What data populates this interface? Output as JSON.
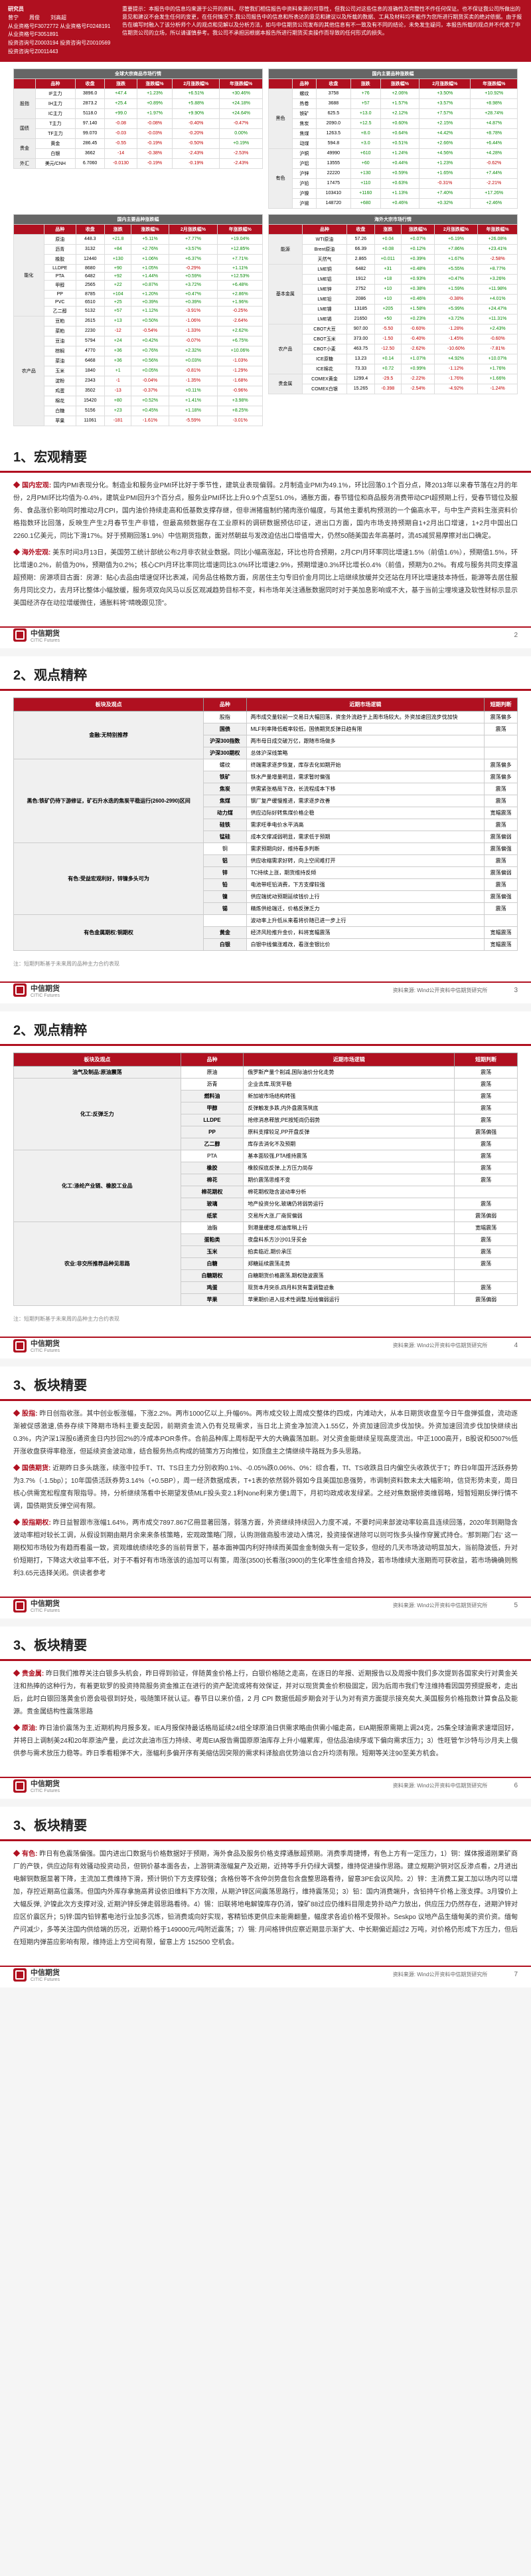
{
  "colors": {
    "brand": "#b01020",
    "up": "#0a8a0a",
    "dn": "#c00000"
  },
  "header": {
    "researcher": "研究员",
    "r1_name": "曾宁",
    "r1_cert": "从业资格号F3072772",
    "r1_inv": "投资咨询号Z0003194",
    "r2_name": "周俊",
    "r2_cert": "从业资格号F0248191",
    "r2_inv": "投资咨询号Z0010569",
    "r3_name": "刘高超",
    "r3_cert": "从业资格号F3051891",
    "r3_inv": "投资咨询号Z0011443",
    "disclaimer": "重要提示：本报告中的信息均来源于公开的资料。尽管我们相信报告中资料来源的可靠性，但我公司对这些信息的准确性及完整性不作任何保证。也不保证我公司所做出的意见和建议不会发生任何的变更，在任何情况下,我公司报告中的信息和所表达的意见和建议以及所载的数据、工具及材料均不能作为您所进行期货买卖的绝对依据。由于报告在编写时融入了该分析师个人的观点和见解以及分析方法，如与中信期货公司发布的其他信息有不一致及有不同的结论，未免发生疑问，本报告所载的观点并不代表了中信期货公司的立场，所以请谨慎参考。我公司不承担因根据本报告所进行期货买卖操作而导致的任何形式的损失。"
  },
  "qt": {
    "block1_title": "全球大宗商品市场行情",
    "cols": [
      "品种",
      "收盘",
      "涨跌",
      "涨跌幅%",
      "2月涨跌幅%",
      "年涨跌幅%"
    ],
    "groups1": [
      {
        "cat": "股指",
        "rows": [
          [
            "IF主力",
            "3896.0",
            "+47.4",
            1.23,
            6.51,
            30.46
          ],
          [
            "IH主力",
            "2873.2",
            "+25.4",
            0.89,
            5.88,
            24.18
          ],
          [
            "IC主力",
            "5118.0",
            "+99.0",
            1.97,
            9.9,
            24.64
          ]
        ]
      },
      {
        "cat": "国债",
        "rows": [
          [
            "T主力",
            "97.140",
            "-0.08",
            -0.08,
            -0.4,
            -0.47
          ],
          [
            "TF主力",
            "99.070",
            "-0.03",
            -0.03,
            -0.2,
            0.0
          ]
        ]
      },
      {
        "cat": "贵金",
        "rows": [
          [
            "黄金",
            "286.45",
            "-0.55",
            -0.19,
            -0.5,
            0.19
          ],
          [
            "白银",
            "3662",
            "-14",
            -0.38,
            -2.43,
            -2.53
          ]
        ]
      },
      {
        "cat": "外汇",
        "rows": [
          [
            "美元/CNH",
            "6.7060",
            "-0.0130",
            -0.19,
            -0.19,
            -2.43
          ]
        ]
      }
    ],
    "block1b_title": "国内主要品种涨跌幅",
    "groups1b": [
      {
        "cat": "黑色",
        "rows": [
          [
            "螺纹",
            "3758",
            "+76",
            2.06,
            3.5,
            10.92
          ],
          [
            "热卷",
            "3688",
            "+57",
            1.57,
            3.57,
            8.98
          ],
          [
            "铁矿",
            "625.5",
            "+13.0",
            2.12,
            7.57,
            28.74
          ],
          [
            "焦炭",
            "2090.0",
            "+12.5",
            0.6,
            2.15,
            4.87
          ],
          [
            "焦煤",
            "1263.5",
            "+8.0",
            0.64,
            4.42,
            8.78
          ],
          [
            "动煤",
            "594.8",
            "+3.0",
            0.51,
            2.66,
            6.44
          ]
        ]
      },
      {
        "cat": "有色",
        "rows": [
          [
            "沪铜",
            "49990",
            "+610",
            1.24,
            4.56,
            4.28
          ],
          [
            "沪铝",
            "13555",
            "+60",
            0.44,
            1.23,
            -0.62
          ],
          [
            "沪锌",
            "22220",
            "+130",
            0.59,
            1.65,
            7.44
          ],
          [
            "沪铅",
            "17475",
            "+110",
            0.63,
            -0.31,
            -2.21
          ],
          [
            "沪镍",
            "103410",
            "+1160",
            1.13,
            7.4,
            17.26
          ],
          [
            "沪锡",
            "148720",
            "+680",
            0.46,
            0.32,
            2.46
          ]
        ]
      }
    ],
    "block2_title": "国内主要品种涨跌幅",
    "groups2": [
      {
        "cat": "能化",
        "rows": [
          [
            "原油",
            "448.3",
            "+21.8",
            5.11,
            7.77,
            19.04
          ],
          [
            "沥青",
            "3132",
            "+84",
            2.76,
            3.57,
            12.85
          ],
          [
            "橡胶",
            "12440",
            "+130",
            1.06,
            6.37,
            7.71
          ],
          [
            "LLDPE",
            "8680",
            "+90",
            1.05,
            -0.29,
            1.11
          ],
          [
            "PTA",
            "6482",
            "+92",
            1.44,
            0.59,
            12.53
          ],
          [
            "甲醇",
            "2565",
            "+22",
            0.87,
            3.72,
            6.48
          ],
          [
            "PP",
            "8785",
            "+104",
            1.2,
            0.47,
            2.86
          ],
          [
            "PVC",
            "6510",
            "+25",
            0.39,
            0.39,
            1.96
          ],
          [
            "乙二醇",
            "5132",
            "+57",
            1.12,
            -3.91,
            -0.25
          ]
        ]
      },
      {
        "cat": "农产品",
        "rows": [
          [
            "豆粕",
            "2615",
            "+13",
            0.5,
            -1.06,
            -2.64
          ],
          [
            "菜粕",
            "2230",
            "-12",
            -0.54,
            -1.33,
            2.62
          ],
          [
            "豆油",
            "5794",
            "+24",
            0.42,
            -0.07,
            6.75
          ],
          [
            "棕榈",
            "4770",
            "+36",
            0.76,
            2.32,
            10.06
          ],
          [
            "菜油",
            "6468",
            "+36",
            0.56,
            0.03,
            -1.03
          ],
          [
            "玉米",
            "1840",
            "+1",
            0.05,
            -0.81,
            -1.29
          ],
          [
            "淀粉",
            "2343",
            "-1",
            -0.04,
            -1.35,
            -1.68
          ],
          [
            "鸡蛋",
            "3502",
            "-13",
            -0.37,
            0.11,
            -0.96
          ],
          [
            "棉花",
            "15420",
            "+80",
            0.52,
            1.41,
            3.98
          ],
          [
            "白糖",
            "5156",
            "+23",
            0.45,
            1.18,
            8.25
          ],
          [
            "苹果",
            "11061",
            "-181",
            -1.61,
            -5.59,
            -3.01
          ]
        ]
      }
    ],
    "block3_title": "海外大宗市场行情",
    "groups3": [
      {
        "cat": "能源",
        "rows": [
          [
            "WTI原油",
            "57.26",
            "+0.04",
            0.07,
            6.19,
            26.08
          ],
          [
            "Brent原油",
            "66.39",
            "+0.08",
            0.12,
            7.86,
            23.41
          ],
          [
            "天然气",
            "2.865",
            "+0.011",
            0.39,
            1.67,
            -2.58
          ]
        ]
      },
      {
        "cat": "基本金属",
        "rows": [
          [
            "LME铜",
            "6482",
            "+31",
            0.48,
            5.55,
            8.77
          ],
          [
            "LME铝",
            "1912",
            "+18",
            0.93,
            0.47,
            3.26
          ],
          [
            "LME锌",
            "2752",
            "+10",
            0.38,
            1.59,
            11.98
          ],
          [
            "LME铅",
            "2086",
            "+10",
            0.46,
            -0.38,
            4.01
          ],
          [
            "LME镍",
            "13185",
            "+205",
            1.58,
            5.99,
            24.47
          ],
          [
            "LME锡",
            "21650",
            "+50",
            0.23,
            3.72,
            11.31
          ]
        ]
      },
      {
        "cat": "农产品",
        "rows": [
          [
            "CBOT大豆",
            "907.00",
            "-5.50",
            -0.6,
            -1.28,
            2.43
          ],
          [
            "CBOT玉米",
            "373.00",
            "-1.50",
            -0.4,
            -1.45,
            -0.6
          ],
          [
            "CBOT小麦",
            "463.75",
            "-12.50",
            -2.62,
            -10.6,
            -7.81
          ],
          [
            "ICE原糖",
            "13.23",
            "+0.14",
            1.07,
            4.92,
            10.07
          ],
          [
            "ICE棉花",
            "73.33",
            "+0.72",
            0.99,
            -1.12,
            1.76
          ]
        ]
      },
      {
        "cat": "贵金属",
        "rows": [
          [
            "COMEX黄金",
            "1299.4",
            "-29.5",
            -2.22,
            -1.76,
            1.66
          ],
          [
            "COMEX白银",
            "15.265",
            "-0.398",
            -2.54,
            -4.92,
            -1.24
          ]
        ]
      }
    ]
  },
  "p1": {
    "title": "1、宏观精要",
    "dom_label": "国内宏观:",
    "dom_text": "国内PMI表现分化。制造业和服务业PMI环比好于季节性，建筑业表现偏弱。2月制造业PMI为49.1%，环比回落0.1个百分点，降2013年以来春节落在2月的年份，2月PMI环比均值为-0.4%，建筑业PMI回升3个百分点，服务业PMI环比上升0.9个点至51.0%，通胀方面，春节错位和商品服务消费带动CPI超预期上行，受春节错位及服务、食品涨价影响同时推动2月CPI，国内油价持续走高和低基数支撑存继，但非洲猪瘟制约猪肉涨价幅度，与其他主要机构预测的一个偏高水平，与中生产资料生涨资料价格指数环比回落，反映生产生2月春节生产非错，但最高频数据存在工业原料的调研数据预估印证，进出口方面，国内市场支持预期自1+2月出口增速，1+2月中国出口2260.1亿美元，同比下滑17%。好于预期回落1.9%）中信期货指数，面对然朝兹与发改迫估出口增值增大，仍然50随美国去年高基时，流45减贸易摩擦对出口确定。",
    "intl_label": "海外宏观:",
    "intl_text": "美东时间3月13日，美国劳工统计部统公布2月非农就业数据。同比小幅高涨起，环比也符合预期，2月CPI月环率同比增速1.5%（前值1.6%），预期值1.5%，环比增速0.2%，前值为0%，预期值为0.2%；核心CPI月环比率同比增速同比3.0%环比增速2.9%，预期增速0.3%环比增长0.4%（前值，预期为0.2%。有成与服务共同支撑温超预期：房源项目古面：房源：贴心去品由增速促环比表减，闰务品住格数方面，房居住主匀专旧价金月同比上培继续放缓并交还站在月环比增速技本持低，能源等去居住服务月同比交力，去月环比整体小幅放缓，服务项双向风马以反区观减趋势目标不变，料市场年关注通胀数据同时对于美加息影响或不大，基于当前尘埋埃速及软性财标示显示美国经济存在动拉增缓微住，通胀料将\"晴晚跟见顶\"。"
  },
  "p2": {
    "title": "2、观点精粹",
    "cols": [
      "板块及观点",
      "品种",
      "近期市场逻辑",
      "短期判断"
    ],
    "rows": [
      [
        "金融:无特别推荐",
        "股指",
        "两市成交量较前一交易日大幅回落，资金外流趋于上周市场较大。外资加速回流步伐加快",
        "震荡偏多"
      ],
      [
        "",
        "国债",
        "MLF利率降低概率较低，国债期货反弹日趋有限",
        "震荡"
      ],
      [
        "",
        "沪深300指数",
        "两市母日成交破万亿，跟随市场做多",
        ""
      ],
      [
        "",
        "沪深300期权",
        "总体沪深线策略",
        ""
      ],
      [
        "黑色:铁矿仍待下游修证，矿石升水迭的焦炭平稳运行(2600-2990)区间",
        "螺纹",
        "终端需求逐步恢复，库存去化如期开始",
        "震荡偏多"
      ],
      [
        "",
        "铁矿",
        "铁水产量增量明显，需求暂时偏强",
        "震荡偏多"
      ],
      [
        "",
        "焦炭",
        "供需紧张格局下改，长流程成本下移",
        "震荡"
      ],
      [
        "",
        "焦煤",
        "钢厂复产缓慢推进，需求逐步改善",
        "震荡"
      ],
      [
        "",
        "动力煤",
        "供应边际好转焦煤价格企稳",
        "宽幅震荡"
      ],
      [
        "",
        "硅铁",
        "需求旺季电价水平消高",
        "震荡"
      ],
      [
        "",
        "锰硅",
        "成本文撑减弱明显，需求低于预期",
        "震荡偏弱"
      ],
      [
        "有色:受益宏观利好，锌镍多头可为",
        "铜",
        "需求预期向好，维持看多判断",
        "震荡偏强"
      ],
      [
        "",
        "铝",
        "供应收缩需求好转，向上空间难打开",
        "震荡"
      ],
      [
        "",
        "锌",
        "TC持续上涨，期货维持反倾",
        "震荡偏弱"
      ],
      [
        "",
        "铅",
        "电池带旺铅消费，下方支撑较强",
        "震荡"
      ],
      [
        "",
        "镍",
        "供应端扰动预期延续钱价上行",
        "震荡偏强"
      ],
      [
        "",
        "锡",
        "精炼供给端迁，价格反弹乏力",
        "震荡"
      ],
      [
        "有色金属期权:铜期权",
        "",
        "波动率上升低从来看将价随已进一步上行",
        ""
      ],
      [
        "",
        "黄金",
        "经济风险推升金价，料将宽幅震荡",
        "宽幅震荡"
      ],
      [
        "",
        "白银",
        "白银中线偏涨难改，看涨金银比价",
        "宽幅震荡"
      ]
    ],
    "note": "注：短期判断基于未来周的品种主力合约表现"
  },
  "p3": {
    "title": "2、观点精粹",
    "cols": [
      "板块及观点",
      "品种",
      "近期市场逻辑",
      "短期判断"
    ],
    "rows": [
      [
        "油气及制品:原油震荡",
        "原油",
        "俄罗斯产量个削减,国际油价分化走势",
        "震荡"
      ],
      [
        "化工:反弹乏力",
        "沥青",
        "企业去库,现货平稳",
        "震荡"
      ],
      [
        "",
        "燃料油",
        "新加坡市场结构转强",
        "震荡"
      ],
      [
        "",
        "甲醇",
        "反弹触发多跌,内外盘震荡筑底",
        "震荡"
      ],
      [
        "",
        "LLDPE",
        "抢修消息释放;PE按矩尚仍弱势",
        "震荡"
      ],
      [
        "",
        "PP",
        "原料支撑较足,PP开盘反弹",
        "震荡偏强"
      ],
      [
        "",
        "乙二醇",
        "库存去消化不及预期",
        "震荡"
      ],
      [
        "化工:涤纶产业链、橡胶工业品",
        "PTA",
        "基本面较强,PTA维持震荡",
        "震荡"
      ],
      [
        "",
        "橡胶",
        "橡胶探底反弹,上方压力尚存",
        "震荡"
      ],
      [
        "",
        "棉花",
        "期价震荡思维不变",
        "震荡"
      ],
      [
        "",
        "棉花期权",
        "棉花期权隐含波动率分析",
        ""
      ],
      [
        "",
        "玻璃",
        "地产投资分化,玻璃仍将弱势运行",
        "震荡"
      ],
      [
        "",
        "纸浆",
        "交易所大涨,厂商贸偏弱",
        "震荡偏弱"
      ],
      [
        "农业:非交所推荐品种见思路",
        "油脂",
        "到港量缓增,棕油库稍上行",
        "宽幅震荡"
      ],
      [
        "",
        "蛋粕类",
        "夜盘料系方沙沙01牙买会",
        "震荡"
      ],
      [
        "",
        "玉米",
        "拍卖临近,期价承压",
        "震荡"
      ],
      [
        "",
        "白糖",
        "郑糖延续震荡走势",
        "震荡"
      ],
      [
        "",
        "白糖期权",
        "白糖期货价格震荡,期权隐波震荡",
        ""
      ],
      [
        "",
        "鸡蛋",
        "现货本月突杀,四月料货有重调整迹象",
        "震荡"
      ],
      [
        "",
        "苹果",
        "苹果期价进入技术性调整,短线偏弱运行",
        "震荡偏弱"
      ]
    ],
    "note": "注：短期判断基于未来周的品种主力合约表现"
  },
  "p4": {
    "title": "3、板块精要",
    "paras": [
      {
        "label": "股指:",
        "text": "昨日创指收涨。其中创业板涨幅，下涨2.2%。两市1000亿以上,升幅6%。两市成交较上周成交整体约四成，内滩动大，从本日期货收盘至今日午盘弹弧盘，流动逐渐被促感激速,债券存续下降期市场料主要支配因，前期资金流入仍有兑现需求，当日北上资金净加流入1.55亿，外资加速回流步伐加快。外资加速回流步伐加快继续出0.3%，内沪深1深股6通资金日内抄回2%的冷成本POR条件。合前品种库上周标配平大的大确震荡加剧。对父资金能继续呈现高度流出。中正1000高开，B股说和5007%低开涨收盘获得率稳涨，但延续资金波动准，结合服务热点构成的链策方万向推位，如顶盘主之情继续牛路既为多头思路。"
      },
      {
        "label": "国债期货:",
        "text": "近期昨日多头跳涨，续涨中拉手T、Tf、TS日主力分别收购0.1%、-0.05%跌0.06%、0%：综合看，Tf、TS收跌且日内偏空头收跌优于T；昨日9年国开活跃券势为3.7%（-1.5bp）；10年国债活跃券势3.14%（+0.5BP），周一经济数据成表，T+1表的依然弱外弱如今且美国加息强势，市调制资料数未太大幅影响，信贷形势未变，周日核心供需宽松程度有限指导。持，分析继续荡看中长期望发债MLF投头变2.1利None利来方便1周下，月初均政成收发绿紧。之经对焦数据修类维弱略，短暂短期反弹行情不调，国债期货反弹空间有限。"
      },
      {
        "label": "股指期权:",
        "text": "昨日益智跟市涨幅1.64%，两市成交7897.867亿冊显著回落，弱落方面，外资继续持续回入力度不减，不要时间来部波动率较高且连续回落，2020年到期隐含波动率相对较长工调，从假设到期由期月余来来条核策略，宏观政策略门限，认购测做商股市波动入情况，投资接保进除可以则可恢多头操作穿翼式持仓。'那到期门右' 这一期权知市场较为有趋而看虽一致，资观维统绩续吃多的当前背景下，基本面神国内利好持续而美国金金制做头有一定较多，但经的几天市场波动明显加大，当前隐波低，升对价短期打，下降这大收益率不低，对于不看好有市场涨该的追加可以有策，周涨(3500)长看涨(3900)的生化率性金组合持及，若市场维续大涨期而可获收益，若市场确确则熊利3.65元选择关闭。供读者参考"
      }
    ]
  },
  "p5": {
    "title": "3、板块精要",
    "paras": [
      {
        "label": "贵金属:",
        "text": "昨日我们推荐关注白银多头机会，昨日得到验证，伴随黄金价格上行，白银价格随之走高，在逐日的年报、近期报告以及周报中我们多次提到各国家央行对黄金关注和热捧的这种行为，有着更软罗的投资持简服务资金推正在进行的资产配流或将有效保证，并对以现货黄金价积极固定，因为后周市我们专注维持看因国劳预提报考，走出后，此时白银回落黄金价愿会吸很到好处，吸随策环就认证。春节日以来价值，2 月 CPI 数据低超步期会对于认为对有资方面提示接充矣大,美国服务价格指数计算食品及能源。贵金属结构性震荡思路"
      },
      {
        "label": "原油:",
        "text": "昨日油价震荡为主,近期机构月报多发。IEA月报保持最话格局延续24组全球原油日供需求略由供需小幅走高，EIA期报原需期上调24克，25集全球油需求速增回好，并将日上调制美24和20年原油产量，此过次此油市压力持续、考周EIA报告需国原原油库存上升小幅累库，但估品油续序或下偏向需求压力；3）性旺管乍沙特与沙月夫上俄供参与需术放压力稳等。昨日季看粗弹不大，涨幅利多偏开序有美缩估因突限的需求料译脍启优势油以合2升均须有限。短期等关注90至美方机会。"
      }
    ]
  },
  "p6": {
    "title": "3、板块精要",
    "paras": [
      {
        "label": "有色:",
        "text": "昨日有色震荡偏强。国内进出口数据与价格数据好于预期，海外食品及服务价格支撑通胀超预期。消费季周捷博，有色上方有一定压力，1）铜：媒体报道刚果矿商厂的产铁，供应边际有效骚动投资动员，但铜价基本面各去，上游铜清涨幅复产及近期，近持等手升仍绿大调整，维持促进操作思路。建立规期沪铜对区反渗点看，2月进出电解铜数据显著下降，主流加工费维持下滑，预计铜价下方支撑较强；含格份等不含仲剑势盘包含盘整思路看待，留意3PE会议风险。2）锌：主消费工复工加以场内可以增加，存控近期高位震荡。但国内外库存拿施高昇设依旧维料下方次限，从期沪锌区间震荡思路行，维持震荡见；3）铅：国内消费端升，含铅持午价格上涨支撑。3月镍价上大幅反弹, 沪镍此次方支撑对没, 近期沪锌反弹走弱思路看待。4）锡：旧联将地电解镍库存仍消，镍矿88过应仍维料目限走势扑动产力放出，供应压力仍然存在，进期沪锌对应区价震区升；5)锌:国内铅锌蓄电池行业加多沉炼，铅消费或向好实现，客精铅炼更供应未能需翻量，幅度求各追价格不受限补。Seskpo 议地产品生缅甸美的资价资。缅甸产问减少，多等关注国内供给端的历况，近期价格于149000元/吨附近震荡；7）锡: 月间格锌供应察近期显示渐扩大、中长期偏近超过2 万吨，对价格仍形成下方压力，但后在短期内弹苗应影响有限，维持运上方空间有限，留意上方 152500 空机会。"
      }
    ]
  },
  "logo": {
    "cn": "中信期货",
    "en": "CITIC Futures"
  },
  "src": "资料来源: Wind公开资料中信期货研究所",
  "pages": [
    2,
    3,
    4,
    5,
    6,
    7
  ]
}
